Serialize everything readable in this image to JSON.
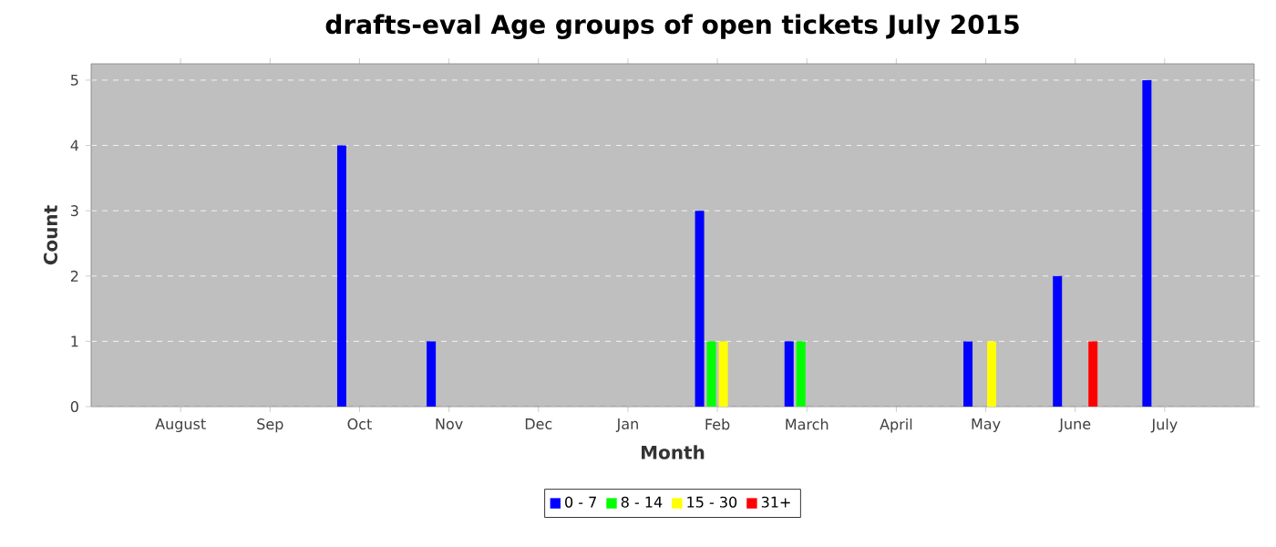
{
  "chart_data": {
    "type": "bar",
    "title": "drafts-eval Age groups of open tickets July 2015",
    "xlabel": "Month",
    "ylabel": "Count",
    "categories": [
      "August",
      "Sep",
      "Oct",
      "Nov",
      "Dec",
      "Jan",
      "Feb",
      "March",
      "April",
      "May",
      "June",
      "July"
    ],
    "series": [
      {
        "name": "0 - 7",
        "color": "#0000ff",
        "values": [
          0,
          0,
          4,
          1,
          0,
          0,
          3,
          1,
          0,
          1,
          2,
          5
        ]
      },
      {
        "name": "8 - 14",
        "color": "#00ff00",
        "values": [
          0,
          0,
          0,
          0,
          0,
          0,
          1,
          1,
          0,
          0,
          0,
          0
        ]
      },
      {
        "name": "15 - 30",
        "color": "#ffff00",
        "values": [
          0,
          0,
          0,
          0,
          0,
          0,
          1,
          0,
          0,
          1,
          0,
          0
        ]
      },
      {
        "name": "31+",
        "color": "#ff0000",
        "values": [
          0,
          0,
          0,
          0,
          0,
          0,
          0,
          0,
          0,
          0,
          1,
          0
        ]
      }
    ],
    "ylim": [
      0,
      5.25
    ],
    "yticks": [
      0,
      1,
      2,
      3,
      4,
      5
    ],
    "grid": "y",
    "legend": "bottom"
  }
}
